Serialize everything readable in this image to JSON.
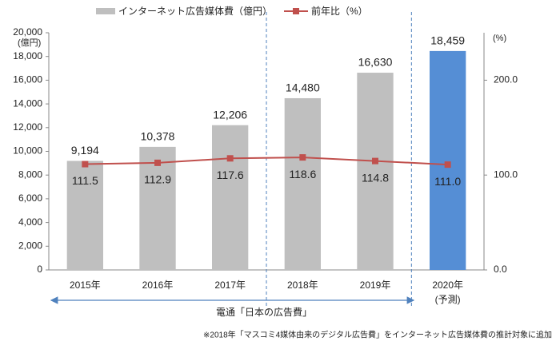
{
  "chart_data": {
    "type": "bar_line",
    "categories": [
      "2015年",
      "2016年",
      "2017年",
      "2018年",
      "2019年",
      "2020年"
    ],
    "category_note": "(予測)",
    "series": [
      {
        "name": "インターネット広告媒体費（億円）",
        "type": "bar",
        "color": "#bfbfbf",
        "colors": [
          "#bfbfbf",
          "#bfbfbf",
          "#bfbfbf",
          "#bfbfbf",
          "#bfbfbf",
          "#558ed5"
        ],
        "values": [
          9194,
          10378,
          12206,
          14480,
          16630,
          18459
        ],
        "value_labels": [
          "9,194",
          "10,378",
          "12,206",
          "14,480",
          "16,630",
          "18,459"
        ]
      },
      {
        "name": "前年比（%）",
        "type": "line",
        "color": "#c0504d",
        "axis": "y2",
        "values": [
          111.5,
          112.9,
          117.6,
          118.6,
          114.8,
          111.0
        ],
        "value_labels": [
          "111.5",
          "112.9",
          "117.6",
          "118.6",
          "114.8",
          "111.0"
        ]
      }
    ],
    "ylim": [
      0,
      20000
    ],
    "yticks": [
      0,
      {
        "value": 2000,
        "label": "2,000"
      },
      {
        "value": 4000,
        "label": "4,000"
      },
      {
        "value": 6000,
        "label": "6,000"
      },
      {
        "value": 8000,
        "label": "8,000"
      },
      {
        "value": 10000,
        "label": "10,000"
      },
      {
        "value": 12000,
        "label": "12,000"
      },
      {
        "value": 14000,
        "label": "14,000"
      },
      {
        "value": 16000,
        "label": "16,000"
      },
      {
        "value": 18000,
        "label": "18,000"
      },
      {
        "value": 20000,
        "label": "20,000"
      }
    ],
    "y_unit": "(億円)",
    "y2lim": [
      0,
      250
    ],
    "y2ticks": [
      {
        "value": 0,
        "label": "0.0"
      },
      {
        "value": 100,
        "label": "100.0"
      },
      {
        "value": 200,
        "label": "200.0"
      }
    ],
    "y2_unit": "(%)",
    "source_label": "電通「日本の広告費」",
    "footnote": "※2018年「マスコミ4媒体由来のデジタル広告費」をインターネット広告媒体費の推計対象に追加"
  }
}
